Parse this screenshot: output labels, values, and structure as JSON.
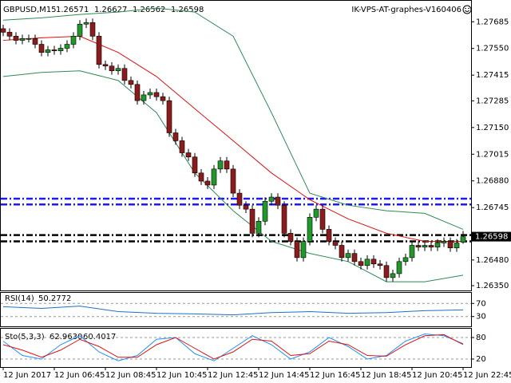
{
  "chart_data": [
    {
      "type": "candlestick",
      "title": "GBPUSD,M15",
      "header_values": [
        1.26571,
        1.26627,
        1.26562,
        1.26598
      ],
      "annotation": "IK-VPS-AT-graphes-V160406",
      "xlim": [
        -0.5,
        73.25
      ],
      "ylim": [
        1.26334,
        1.27787
      ],
      "yticks": [
        1.27685,
        {
          "value": 1.2755,
          "label": "1.27550"
        },
        1.27415,
        1.27285,
        {
          "value": 1.2715,
          "label": "1.27150"
        },
        1.27015,
        {
          "value": 1.2688,
          "label": "1.26880"
        },
        1.26745,
        {
          "value": 1.2648,
          "label": "1.26480"
        },
        {
          "value": 1.2635,
          "label": "1.26350"
        }
      ],
      "xticks": [
        {
          "value": 0,
          "label": "12 Jun 2017"
        },
        {
          "value": 8,
          "label": "12 Jun 06:45"
        },
        {
          "value": 16,
          "label": "12 Jun 08:45"
        },
        {
          "value": 24,
          "label": "12 Jun 10:45"
        },
        {
          "value": 32,
          "label": "12 Jun 12:45"
        },
        {
          "value": 40,
          "label": "12 Jun 14:45"
        },
        {
          "value": 48,
          "label": "12 Jun 16:45"
        },
        {
          "value": 56,
          "label": "12 Jun 18:45"
        },
        {
          "value": 64,
          "label": "12 Jun 20:45"
        },
        {
          "value": 72,
          "label": "12 Jun 22:45"
        }
      ],
      "current_price": 1.26598,
      "up_color": "#1f9a2a",
      "down_color": "#8e1b1b",
      "open": [
        1.2765,
        1.27632,
        1.27612,
        1.27591,
        1.276,
        1.276,
        1.27571,
        1.2753,
        1.27543,
        1.27538,
        1.27551,
        1.27571,
        1.27612,
        1.27673,
        1.27681,
        1.27612,
        1.27469,
        1.27461,
        1.27437,
        1.27449,
        1.27388,
        1.27368,
        1.27286,
        1.27315,
        1.27327,
        1.27306,
        1.27286,
        1.27123,
        1.27083,
        1.27022,
        1.27001,
        1.2692,
        1.26879,
        1.26859,
        1.2694,
        1.26981,
        1.2694,
        1.26818,
        1.26757,
        1.26737,
        1.26615,
        1.26676,
        1.26777,
        1.26798,
        1.26757,
        1.26615,
        1.26574,
        1.26492,
        1.26574,
        1.26696,
        1.26737,
        1.26635,
        1.26574,
        1.26554,
        1.26492,
        1.26513,
        1.26472,
        1.26452,
        1.26484,
        1.2646,
        1.26452,
        1.26391,
        1.26411,
        1.26472,
        1.26492,
        1.26554,
        1.26545,
        1.26554,
        1.26545,
        1.26566,
        1.26574,
        1.26541,
        1.26571
      ],
      "high": [
        1.2767,
        1.27652,
        1.27632,
        1.2762,
        1.2762,
        1.2762,
        1.27591,
        1.27563,
        1.27563,
        1.27571,
        1.27591,
        1.27632,
        1.27693,
        1.27701,
        1.27701,
        1.27632,
        1.27489,
        1.27481,
        1.27469,
        1.27469,
        1.27408,
        1.27388,
        1.27335,
        1.27347,
        1.27347,
        1.27326,
        1.27306,
        1.27143,
        1.27103,
        1.27042,
        1.27021,
        1.2694,
        1.26899,
        1.2696,
        1.27001,
        1.27001,
        1.2696,
        1.26838,
        1.26777,
        1.26757,
        1.26696,
        1.26797,
        1.26818,
        1.26818,
        1.26777,
        1.26635,
        1.26594,
        1.26594,
        1.26716,
        1.26757,
        1.26757,
        1.26655,
        1.26594,
        1.26574,
        1.26533,
        1.26533,
        1.26492,
        1.26504,
        1.26504,
        1.2648,
        1.26472,
        1.26431,
        1.26492,
        1.26512,
        1.26574,
        1.26574,
        1.26574,
        1.26574,
        1.26586,
        1.26594,
        1.26594,
        1.26586,
        1.26627
      ],
      "low": [
        1.27612,
        1.27592,
        1.27571,
        1.27571,
        1.2758,
        1.27551,
        1.2751,
        1.2751,
        1.27518,
        1.27518,
        1.27531,
        1.27551,
        1.27592,
        1.27653,
        1.27592,
        1.27449,
        1.27441,
        1.27417,
        1.27417,
        1.27368,
        1.27348,
        1.27266,
        1.27266,
        1.27295,
        1.27286,
        1.27266,
        1.27103,
        1.27063,
        1.27002,
        1.26981,
        1.269,
        1.26859,
        1.26839,
        1.26839,
        1.2692,
        1.2692,
        1.26798,
        1.26737,
        1.26717,
        1.26595,
        1.26595,
        1.26656,
        1.26757,
        1.26737,
        1.26595,
        1.26554,
        1.26472,
        1.26472,
        1.26554,
        1.26676,
        1.26615,
        1.26554,
        1.26534,
        1.26472,
        1.26472,
        1.26452,
        1.26432,
        1.26432,
        1.2644,
        1.26432,
        1.26371,
        1.26371,
        1.26391,
        1.26452,
        1.26472,
        1.26525,
        1.26525,
        1.26525,
        1.26525,
        1.26546,
        1.26521,
        1.26521,
        1.26562
      ],
      "close": [
        1.27632,
        1.27612,
        1.27591,
        1.276,
        1.276,
        1.27571,
        1.2753,
        1.27543,
        1.27538,
        1.27551,
        1.27571,
        1.27612,
        1.27673,
        1.27681,
        1.27612,
        1.27469,
        1.27461,
        1.27437,
        1.27449,
        1.27388,
        1.27368,
        1.27286,
        1.27315,
        1.27327,
        1.27306,
        1.27286,
        1.27123,
        1.27083,
        1.27022,
        1.27001,
        1.2692,
        1.26879,
        1.26859,
        1.2694,
        1.26981,
        1.2694,
        1.26818,
        1.26757,
        1.26737,
        1.26615,
        1.26676,
        1.26777,
        1.26798,
        1.26757,
        1.26615,
        1.26574,
        1.26492,
        1.26574,
        1.26696,
        1.26737,
        1.26635,
        1.26574,
        1.26554,
        1.26492,
        1.26513,
        1.26472,
        1.26452,
        1.26484,
        1.2646,
        1.26452,
        1.26391,
        1.26411,
        1.26472,
        1.26492,
        1.26554,
        1.26545,
        1.26554,
        1.26545,
        1.26566,
        1.26574,
        1.26541,
        1.26566,
        1.26598
      ],
      "overlays": [
        {
          "color": "#e01010",
          "x": [
            0,
            6,
            12,
            18,
            24,
            30,
            36,
            42,
            48,
            54,
            60,
            66,
            72
          ],
          "values": [
            1.27591,
            1.27604,
            1.27612,
            1.2753,
            1.27408,
            1.27245,
            1.27083,
            1.2692,
            1.26785,
            1.26688,
            1.26615,
            1.26574,
            1.26574
          ]
        },
        {
          "color": "#2e8b57",
          "x": [
            0,
            6,
            12,
            18,
            24,
            30,
            36,
            42,
            48,
            54,
            60,
            66,
            72
          ],
          "values": [
            1.27693,
            1.27705,
            1.27722,
            1.27734,
            1.27754,
            1.27734,
            1.27612,
            1.27225,
            1.26818,
            1.26757,
            1.26729,
            1.26716,
            1.26635
          ]
        },
        {
          "color": "#2e8b57",
          "x": [
            0,
            6,
            12,
            18,
            24,
            30,
            36,
            42,
            48,
            54,
            60,
            66,
            72
          ],
          "values": [
            1.27408,
            1.27429,
            1.27437,
            1.27388,
            1.27225,
            1.2692,
            1.26729,
            1.26574,
            1.26513,
            1.26472,
            1.2637,
            1.2637,
            1.26403
          ]
        }
      ],
      "levels": [
        {
          "value": 1.2679,
          "color": "#1a1aff"
        },
        {
          "value": 1.26761,
          "color": "#1a1aff"
        },
        {
          "value": 1.26606,
          "color": "#000000"
        },
        {
          "value": 1.26574,
          "color": "#000000"
        }
      ]
    },
    {
      "type": "line",
      "title": "RSI(14)",
      "current_value": 50.2772,
      "xlim": [
        -0.5,
        73.25
      ],
      "ylim": [
        0,
        100
      ],
      "yticks": [
        30,
        70
      ],
      "series": [
        {
          "color": "#1e6fc8",
          "x": [
            0,
            6,
            12,
            18,
            24,
            30,
            36,
            42,
            48,
            54,
            60,
            66,
            72
          ],
          "values": [
            60,
            55,
            62,
            45,
            40,
            38,
            35,
            42,
            45,
            40,
            42,
            48,
            50.2772
          ]
        }
      ]
    },
    {
      "type": "line",
      "title": "Sto(5,3,3)",
      "current_values": [
        62.963,
        60.4017
      ],
      "current_value_labels": [
        "62.9630",
        "60.4017"
      ],
      "xlim": [
        -0.5,
        73.25
      ],
      "ylim": [
        0,
        100
      ],
      "yticks": [
        20,
        80
      ],
      "series": [
        {
          "color": "#1e90ff",
          "x": [
            0,
            3,
            6,
            9,
            12,
            15,
            18,
            21,
            24,
            27,
            30,
            33,
            36,
            39,
            42,
            45,
            48,
            51,
            54,
            57,
            60,
            63,
            66,
            69,
            72
          ],
          "values": [
            70,
            30,
            20,
            60,
            85,
            40,
            15,
            30,
            75,
            80,
            35,
            15,
            50,
            85,
            60,
            20,
            40,
            80,
            55,
            20,
            30,
            70,
            90,
            85,
            62.963
          ]
        },
        {
          "color": "#e01010",
          "x": [
            0,
            3,
            6,
            9,
            12,
            15,
            18,
            21,
            24,
            27,
            30,
            33,
            36,
            39,
            42,
            45,
            48,
            51,
            54,
            57,
            60,
            63,
            66,
            69,
            72
          ],
          "values": [
            60,
            45,
            25,
            45,
            75,
            55,
            25,
            25,
            60,
            80,
            50,
            20,
            40,
            75,
            70,
            30,
            35,
            70,
            60,
            30,
            28,
            60,
            85,
            88,
            60.4017
          ]
        }
      ]
    }
  ]
}
